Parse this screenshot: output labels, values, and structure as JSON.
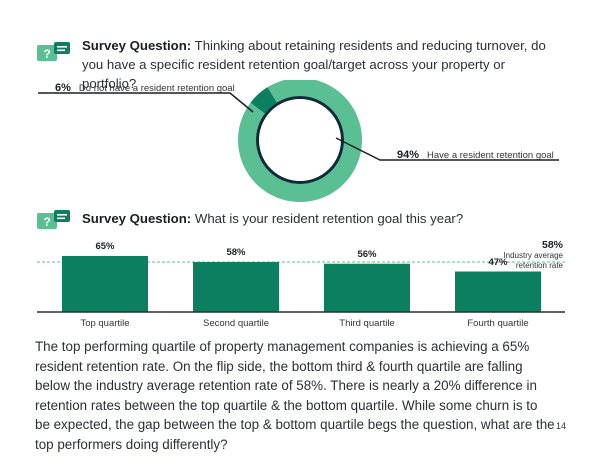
{
  "survey1": {
    "prefix": "Survey Question:",
    "text": "Thinking about retaining residents and reducing turnover, do you have a specific resident retention goal/target across your property or portfolio?"
  },
  "survey2": {
    "prefix": "Survey Question:",
    "text": "What is your resident retention goal this year?"
  },
  "donut": {
    "chart_data": {
      "type": "pie",
      "categories": [
        "Do not have a resident retention goal",
        "Have a resident retention goal"
      ],
      "values": [
        6,
        94
      ],
      "value_labels": [
        "6%",
        "94%"
      ]
    },
    "colors": {
      "small": "#0b7f5f",
      "large": "#5bbf94",
      "center_ring": "#0d2b3a"
    }
  },
  "bars": {
    "chart_data": {
      "type": "bar",
      "categories": [
        "Top quartile",
        "Second quartile",
        "Third quartile",
        "Fourth quartile"
      ],
      "values": [
        65,
        58,
        56,
        47
      ],
      "value_labels": [
        "65%",
        "58%",
        "56%",
        "47%"
      ],
      "reference_line": {
        "value": 58,
        "label_pct": "58%",
        "label": "Industry average retention rate"
      }
    },
    "colors": {
      "bar": "#0b7f5f",
      "reference": "#5bbf94",
      "baseline": "#2b2f36"
    }
  },
  "paragraph": "The top performing quartile of property management companies is achieving a 65% resident retention rate. On the flip side, the bottom third & fourth quartile are falling below the industry average retention rate of 58%. There is nearly a 20% difference in retention rates between the top quartile & the bottom quartile. While some churn is to be expected, the gap between the top & bottom quartile begs the question, what are the top performers doing differently?",
  "page_number": "14"
}
